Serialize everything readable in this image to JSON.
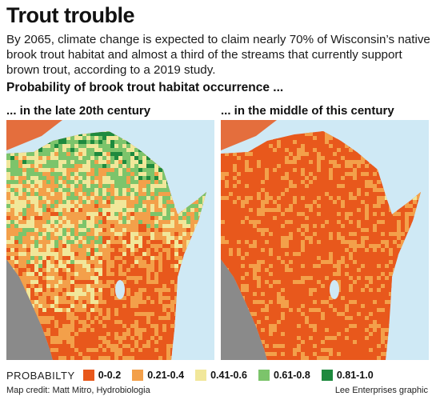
{
  "title": "Trout trouble",
  "intro": "By 2065, climate change is expected to claim nearly 70% of Wisconsin’s native brook trout habitat and almost a third of the streams that currently support brown trout, according to a 2019 study.",
  "subhead": "Probability of brook trout habitat occurrence ...",
  "maps": {
    "left_label": "... in the late 20th century",
    "right_label": "... in the middle of this century"
  },
  "legend": {
    "title": "PROBABILTY",
    "items": [
      {
        "label": "0-0.2",
        "color": "#e8581c"
      },
      {
        "label": "0.21-0.4",
        "color": "#f3a04a"
      },
      {
        "label": "0.41-0.6",
        "color": "#f1e79a"
      },
      {
        "label": "0.61-0.8",
        "color": "#7cc46b"
      },
      {
        "label": "0.81-1.0",
        "color": "#1e8a3e"
      }
    ]
  },
  "colors": {
    "water": "#cfe9f5",
    "outside_land": "#8a8a8a",
    "lake": "#cfe9f5"
  },
  "credit_left": "Map credit: Matt Mitro, Hydrobiologia",
  "credit_right": "Lee Enterprises graphic"
}
